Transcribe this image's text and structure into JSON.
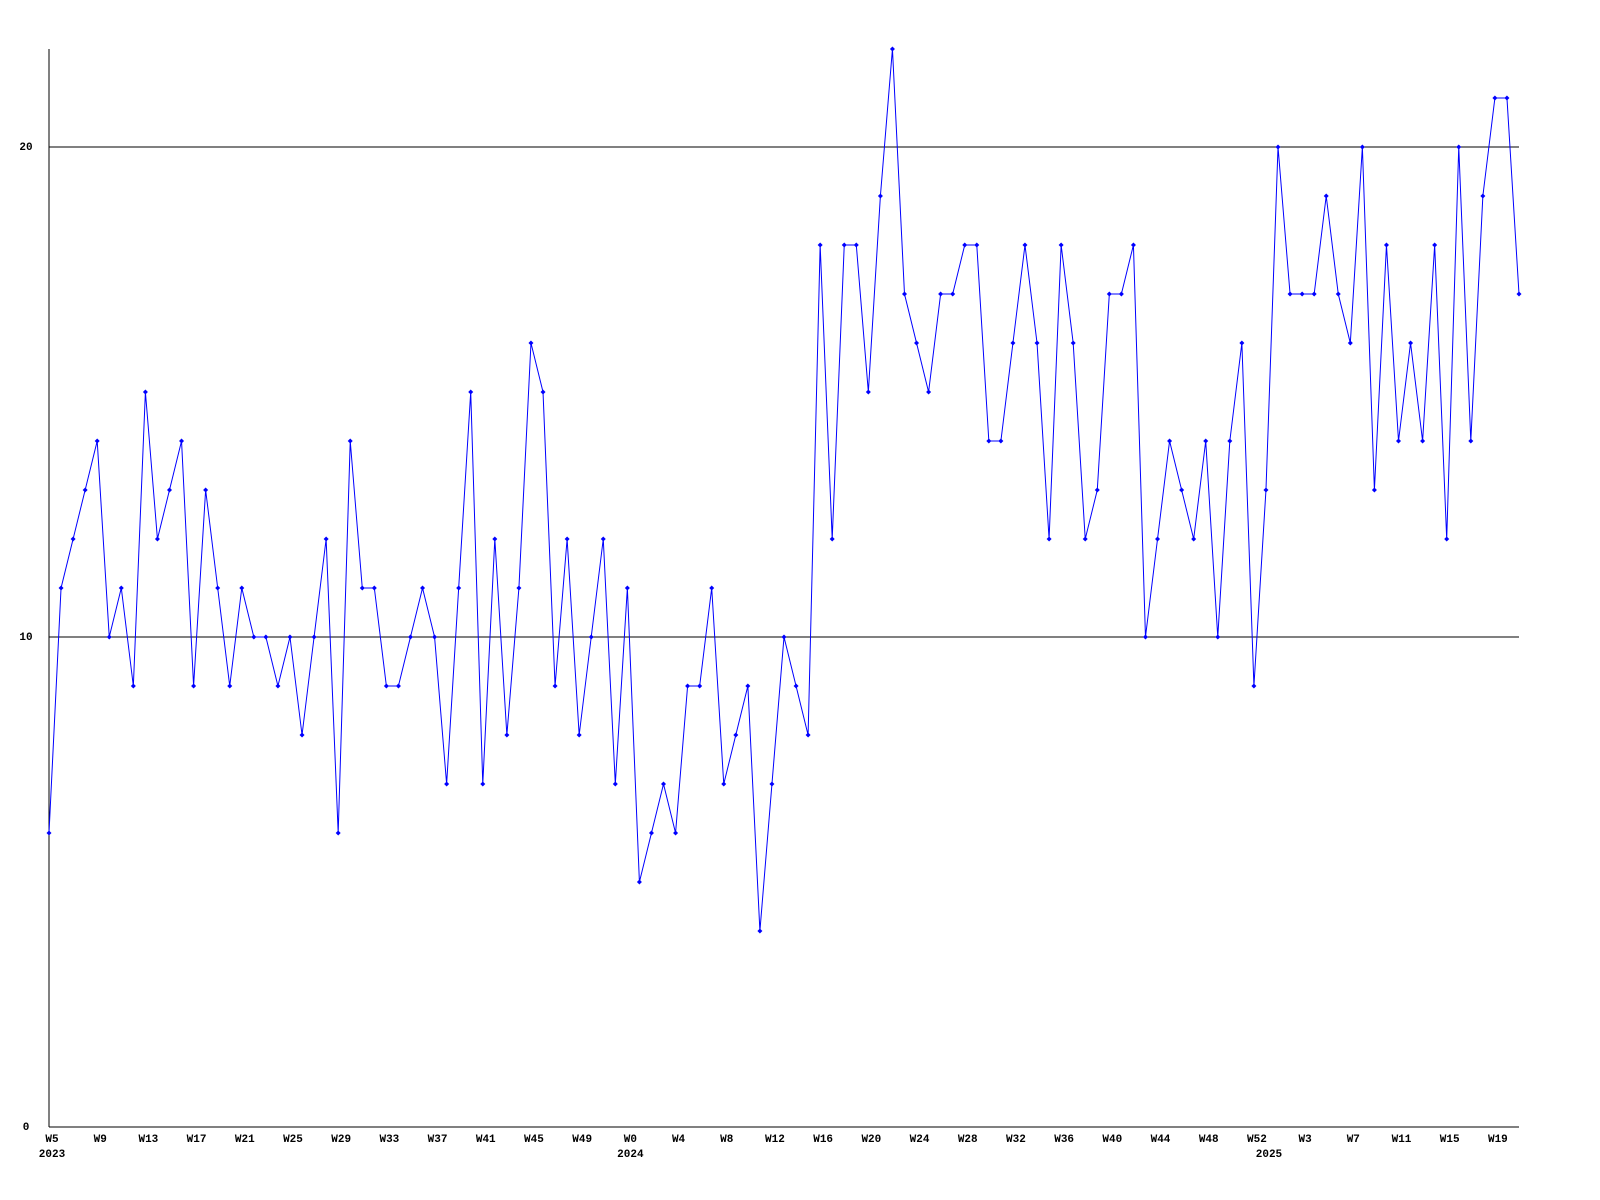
{
  "chart_data": {
    "type": "line",
    "categories": [
      "W5",
      null,
      null,
      null,
      "W9",
      null,
      null,
      null,
      "W13",
      null,
      null,
      null,
      "W17",
      null,
      null,
      null,
      "W21",
      null,
      null,
      null,
      "W25",
      null,
      null,
      null,
      "W29",
      null,
      null,
      null,
      "W33",
      null,
      null,
      null,
      "W37",
      null,
      null,
      null,
      "W41",
      null,
      null,
      null,
      "W45",
      null,
      null,
      null,
      "W49",
      null,
      null,
      null,
      "W0",
      null,
      null,
      null,
      "W4",
      null,
      null,
      null,
      "W8",
      null,
      null,
      null,
      "W12",
      null,
      null,
      null,
      "W16",
      null,
      null,
      null,
      "W20",
      null,
      null,
      null,
      "W24",
      null,
      null,
      null,
      "W28",
      null,
      null,
      null,
      "W32",
      null,
      null,
      null,
      "W36",
      null,
      null,
      null,
      "W40",
      null,
      null,
      null,
      "W44",
      null,
      null,
      null,
      "W48",
      null,
      null,
      null,
      "W52",
      null,
      null,
      null,
      "W3",
      null,
      null,
      null,
      "W7",
      null,
      null,
      null,
      "W11",
      null,
      null,
      null,
      "W15",
      null,
      null,
      null,
      "W19",
      null,
      null
    ],
    "x_group_labels": [
      "2023",
      null,
      null,
      null,
      null,
      null,
      null,
      null,
      null,
      null,
      null,
      null,
      null,
      null,
      null,
      null,
      null,
      null,
      null,
      null,
      null,
      null,
      null,
      null,
      null,
      null,
      null,
      null,
      null,
      null,
      null,
      null,
      null,
      null,
      null,
      null,
      null,
      null,
      null,
      null,
      null,
      null,
      null,
      null,
      null,
      null,
      null,
      null,
      "2024",
      null,
      null,
      null,
      null,
      null,
      null,
      null,
      null,
      null,
      null,
      null,
      null,
      null,
      null,
      null,
      null,
      null,
      null,
      null,
      null,
      null,
      null,
      null,
      null,
      null,
      null,
      null,
      null,
      null,
      null,
      null,
      null,
      null,
      null,
      null,
      null,
      null,
      null,
      null,
      null,
      null,
      null,
      null,
      null,
      null,
      null,
      null,
      null,
      null,
      null,
      null,
      null,
      "2025",
      null,
      null,
      null,
      null,
      null,
      null,
      null,
      null,
      null,
      null,
      null,
      null,
      null,
      null,
      null,
      null,
      null,
      null,
      null,
      null
    ],
    "series": [
      {
        "color": "#0000ff",
        "values": [
          6,
          11,
          12,
          13,
          14,
          10,
          11,
          9,
          15,
          12,
          13,
          14,
          9,
          13,
          11,
          9,
          11,
          10,
          10,
          9,
          10,
          8,
          10,
          12,
          6,
          14,
          11,
          11,
          9,
          9,
          10,
          11,
          10,
          7,
          11,
          15,
          7,
          12,
          8,
          11,
          16,
          15,
          9,
          12,
          8,
          10,
          12,
          7,
          11,
          5,
          6,
          7,
          6,
          9,
          9,
          11,
          7,
          8,
          9,
          4,
          7,
          10,
          9,
          8,
          18,
          12,
          18,
          18,
          15,
          19,
          22,
          17,
          16,
          15,
          17,
          17,
          18,
          18,
          14,
          14,
          16,
          18,
          16,
          12,
          18,
          16,
          12,
          13,
          17,
          17,
          18,
          10,
          12,
          14,
          13,
          12,
          14,
          10,
          14,
          16,
          9,
          13,
          20,
          17,
          17,
          17,
          19,
          17,
          16,
          20,
          13,
          18,
          14,
          16,
          14,
          18,
          12,
          20,
          14,
          19,
          21,
          21,
          17
        ]
      }
    ],
    "ylim": [
      0,
      22
    ],
    "yticks": [
      0,
      10,
      20
    ],
    "grid": true
  }
}
